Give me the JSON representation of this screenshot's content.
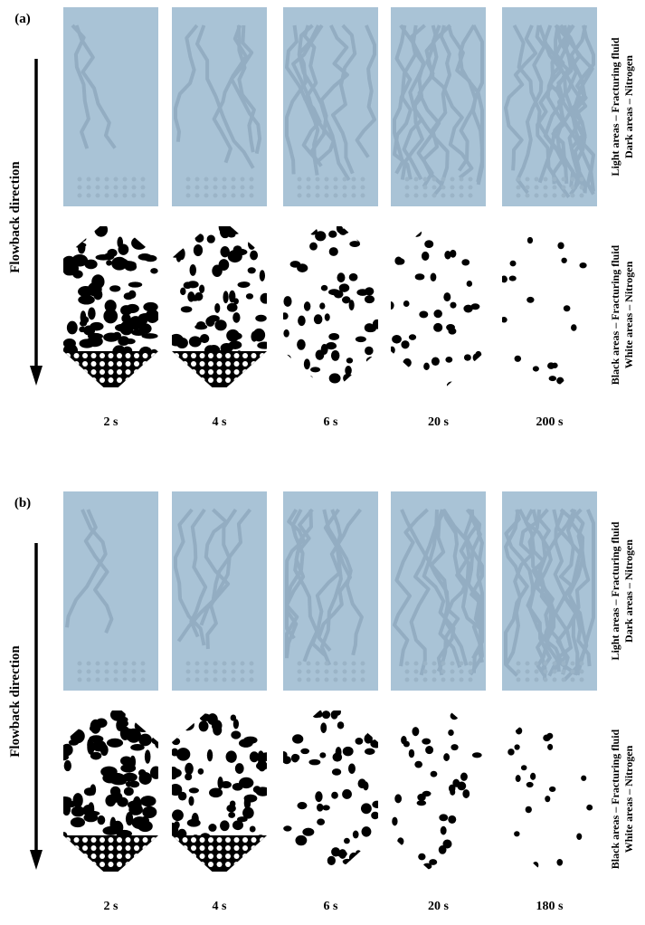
{
  "panels": [
    {
      "label": "(a)",
      "direction": "Flowback direction",
      "times": [
        "2 s",
        "4 s",
        "6 s",
        "20 s",
        "200 s"
      ],
      "legend_top": [
        "Light areas – Fracturing fluid",
        "Dark areas – Nitrogen"
      ],
      "legend_bottom": [
        "Black areas – Fracturing fluid",
        "White areas – Nitrogen"
      ]
    },
    {
      "label": "(b)",
      "direction": "Flowback direction",
      "times": [
        "2 s",
        "4 s",
        "6 s",
        "20 s",
        "180 s"
      ],
      "legend_top": [
        "Light areas – Fracturing fluid",
        "Dark areas – Nitrogen"
      ],
      "legend_bottom": [
        "Black areas – Fracturing fluid",
        "White areas – Nitrogen"
      ]
    }
  ]
}
